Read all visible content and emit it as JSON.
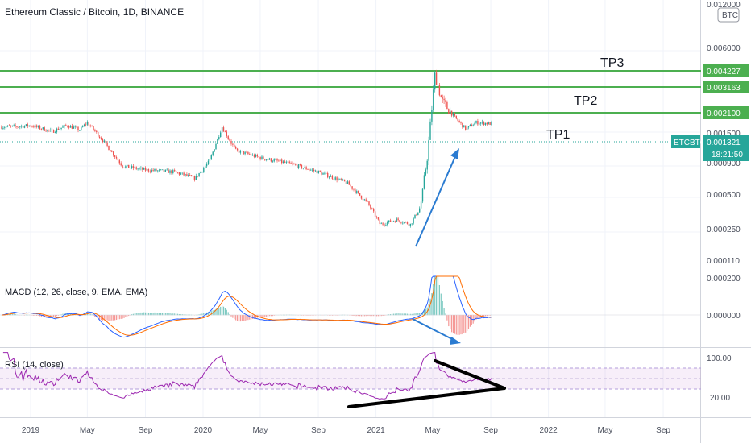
{
  "chart_title": "Ethereum Classic / Bitcoin, 1D, BINANCE",
  "currency_badge": "BTC",
  "colors": {
    "up": "#26a69a",
    "down": "#ef5350",
    "level": "#4caf50",
    "arrow": "#2a7bd1",
    "rsi": "#9c27b0",
    "macd": "#2962ff",
    "signal": "#ff6d00",
    "badge": "#26a69a"
  },
  "price_pane": {
    "y_ticks": [
      "0.012000",
      "0.006000",
      "0.002100",
      "0.001500",
      "0.000900",
      "0.000500",
      "0.000250",
      "0.000110"
    ],
    "levels": [
      {
        "name": "TP3",
        "value": "0.004227"
      },
      {
        "name": "TP2",
        "value": "0.003163"
      },
      {
        "name": "TP1",
        "value": "0.002100"
      }
    ],
    "current": {
      "symbol": "ETCBTC",
      "value": "0.001321",
      "countdown": "18:21:50"
    }
  },
  "macd_pane": {
    "label": "MACD (12, 26, close, 9, EMA, EMA)",
    "y_ticks": [
      "0.000200",
      "0.000000"
    ]
  },
  "rsi_pane": {
    "label": "RSI (14, close)",
    "y_ticks": [
      "100.00",
      "20.00"
    ]
  },
  "x_axis": {
    "ticks": [
      "2019",
      "May",
      "Sep",
      "2020",
      "May",
      "Sep",
      "2021",
      "May",
      "Sep",
      "2022",
      "May",
      "Sep"
    ]
  },
  "chart_data": {
    "type": "candlestick",
    "title": "Ethereum Classic / Bitcoin, 1D, BINANCE",
    "y_scale": "log",
    "price_series_approx": [
      [
        "2018-12-01",
        0.00125
      ],
      [
        "2019-01-01",
        0.00128
      ],
      [
        "2019-02-15",
        0.00115
      ],
      [
        "2019-03-20",
        0.00128
      ],
      [
        "2019-04-15",
        0.00118
      ],
      [
        "2019-05-01",
        0.00135
      ],
      [
        "2019-06-01",
        0.001
      ],
      [
        "2019-07-15",
        0.00062
      ],
      [
        "2019-09-01",
        0.00058
      ],
      [
        "2019-11-01",
        0.00056
      ],
      [
        "2019-12-15",
        0.0005
      ],
      [
        "2020-01-15",
        0.00068
      ],
      [
        "2020-02-10",
        0.00125
      ],
      [
        "2020-03-10",
        0.00082
      ],
      [
        "2020-05-01",
        0.00072
      ],
      [
        "2020-07-01",
        0.00065
      ],
      [
        "2020-09-01",
        0.00056
      ],
      [
        "2020-11-01",
        0.00046
      ],
      [
        "2020-12-15",
        0.00032
      ],
      [
        "2021-01-10",
        0.00022
      ],
      [
        "2021-02-15",
        0.00024
      ],
      [
        "2021-03-15",
        0.00022
      ],
      [
        "2021-04-05",
        0.0003
      ],
      [
        "2021-04-20",
        0.00075
      ],
      [
        "2021-05-06",
        0.0032
      ],
      [
        "2021-05-20",
        0.002
      ],
      [
        "2021-06-15",
        0.0015
      ],
      [
        "2021-07-10",
        0.0012
      ],
      [
        "2021-08-01",
        0.00135
      ],
      [
        "2021-09-03",
        0.00132
      ]
    ],
    "last_close": 0.001321,
    "levels": [
      {
        "name": "TP1",
        "value": 0.0021
      },
      {
        "name": "TP2",
        "value": 0.003163
      },
      {
        "name": "TP3",
        "value": 0.004227
      }
    ]
  }
}
